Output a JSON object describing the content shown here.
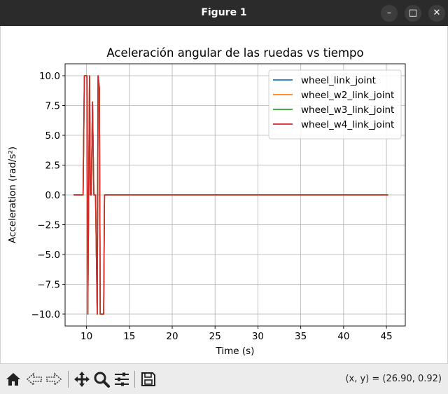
{
  "window": {
    "title": "Figure 1"
  },
  "window_controls": {
    "minimize": "–",
    "maximize": "□",
    "close": "✕"
  },
  "toolbar": {
    "tools": [
      "home-icon",
      "back-icon",
      "forward-icon",
      "pan-icon",
      "zoom-icon",
      "subplots-icon",
      "save-icon"
    ],
    "coords": "(x, y) = (26.90, 0.92)"
  },
  "colors": {
    "series1": "#1f77b4",
    "series2": "#ff7f0e",
    "series3": "#2ca02c",
    "series4": "#d62728",
    "grid": "#b0b0b0"
  },
  "chart_data": {
    "type": "line",
    "title": "Aceleración angular de las ruedas vs tiempo",
    "xlabel": "Time (s)",
    "ylabel": "Acceleration (rad/s²)",
    "xlim": [
      7.5,
      47.2
    ],
    "ylim": [
      -11.0,
      11.0
    ],
    "xticks": [
      10,
      15,
      20,
      25,
      30,
      35,
      40,
      45
    ],
    "xtick_labels": [
      "10",
      "15",
      "20",
      "25",
      "30",
      "35",
      "40",
      "45"
    ],
    "yticks": [
      10,
      7.5,
      5,
      2.5,
      0,
      -2.5,
      -5,
      -7.5,
      -10
    ],
    "ytick_labels": [
      "10.0",
      "7.5",
      "5.0",
      "2.5",
      "0.0",
      "−2.5",
      "−5.0",
      "−7.5",
      "−10.0"
    ],
    "grid": true,
    "legend_position": "top-right",
    "series": [
      {
        "name": "wheel_link_joint",
        "color": "#1f77b4",
        "x": [
          8.5,
          9.6,
          9.75,
          10.05,
          10.15,
          10.25,
          10.35,
          10.45,
          10.55,
          10.7,
          10.85,
          11.05,
          11.25,
          11.35,
          11.5,
          11.6,
          11.75,
          12.0,
          12.1,
          12.25,
          45.2
        ],
        "y": [
          0,
          0,
          10,
          10,
          -10,
          0,
          10,
          0,
          0,
          7.8,
          0,
          0,
          -10,
          10,
          9,
          -10,
          -10,
          -10,
          0,
          0,
          0
        ]
      },
      {
        "name": "wheel_w2_link_joint",
        "color": "#ff7f0e",
        "x": [
          8.5,
          9.6,
          9.75,
          10.05,
          10.15,
          10.25,
          10.35,
          10.45,
          10.55,
          10.7,
          10.85,
          11.05,
          11.25,
          11.35,
          11.5,
          11.6,
          11.75,
          12.0,
          12.1,
          12.25,
          45.2
        ],
        "y": [
          0,
          0,
          10,
          10,
          -10,
          0,
          10,
          0,
          0,
          7.8,
          0,
          0,
          -10,
          10,
          9,
          -10,
          -10,
          -10,
          0,
          0,
          0
        ]
      },
      {
        "name": "wheel_w3_link_joint",
        "color": "#2ca02c",
        "x": [
          8.5,
          9.6,
          9.75,
          10.05,
          10.15,
          10.25,
          10.35,
          10.45,
          10.55,
          10.7,
          10.85,
          11.05,
          11.25,
          11.35,
          11.5,
          11.6,
          11.75,
          12.0,
          12.1,
          12.25,
          45.2
        ],
        "y": [
          0,
          0,
          10,
          10,
          -10,
          0,
          10,
          0,
          0,
          7.8,
          0,
          0,
          -10,
          10,
          9,
          -10,
          -10,
          -10,
          0,
          0,
          0
        ]
      },
      {
        "name": "wheel_w4_link_joint",
        "color": "#d62728",
        "x": [
          8.5,
          9.6,
          9.75,
          10.05,
          10.15,
          10.25,
          10.35,
          10.45,
          10.55,
          10.7,
          10.85,
          11.05,
          11.25,
          11.35,
          11.5,
          11.6,
          11.75,
          12.0,
          12.1,
          12.25,
          45.2
        ],
        "y": [
          0,
          0,
          10,
          10,
          -10,
          0,
          10,
          0,
          0,
          7.8,
          0,
          0,
          -10,
          10,
          9,
          -10,
          -10,
          -10,
          0,
          0,
          0
        ]
      }
    ]
  }
}
